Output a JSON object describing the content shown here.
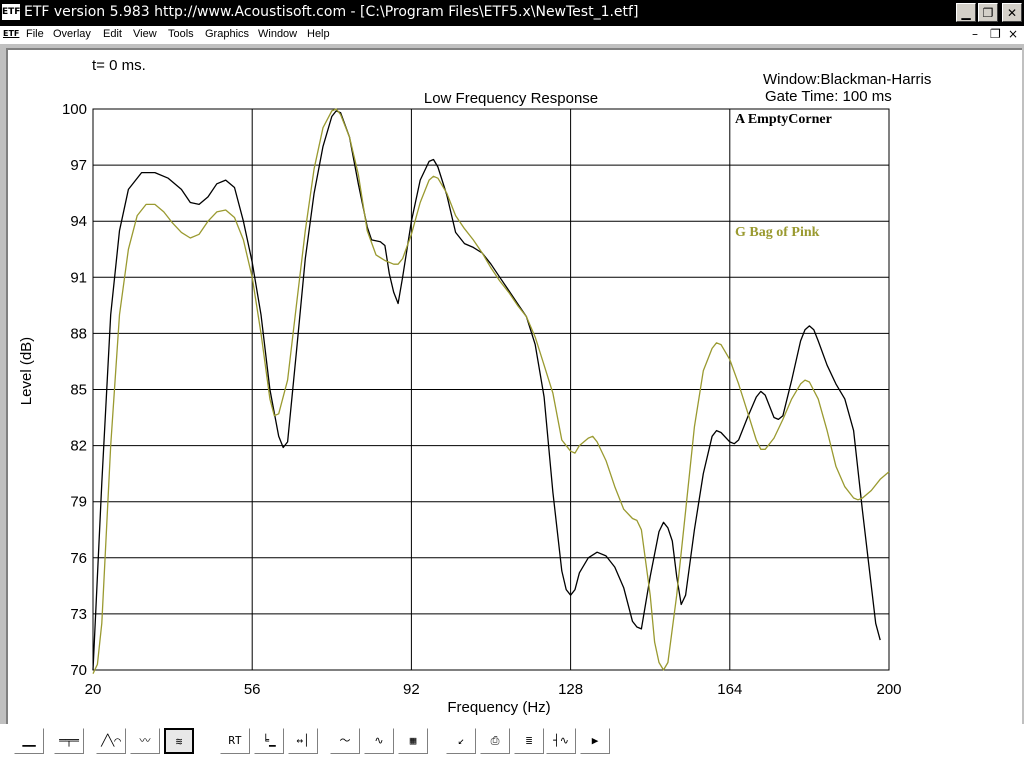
{
  "window": {
    "app_icon_label": "ETF",
    "title": "ETF version 5.983 http://www.Acoustisoft.com - [C:\\Program Files\\ETF5.x\\NewTest_1.etf]"
  },
  "menubar": {
    "doc_icon_label": "ETF",
    "items": [
      {
        "label": "File"
      },
      {
        "label": "Overlay"
      },
      {
        "label": "Edit"
      },
      {
        "label": "View"
      },
      {
        "label": "Tools"
      },
      {
        "label": "Graphics"
      },
      {
        "label": "Window"
      },
      {
        "label": "Help"
      }
    ]
  },
  "plot_header": {
    "time_label": "t= 0 ms.",
    "window_label": "Window:Blackman-Harris",
    "gate_label": "Gate Time: 100 ms"
  },
  "toolbar": {
    "rt_label": "RT"
  },
  "chart_data": {
    "type": "line",
    "title": "Low Frequency Response",
    "xlabel": "Frequency (Hz)",
    "ylabel": "Level (dB)",
    "xlim": [
      20,
      200
    ],
    "ylim": [
      70,
      100
    ],
    "x_ticks": [
      20,
      56,
      92,
      128,
      164,
      200
    ],
    "y_ticks": [
      70,
      73,
      76,
      79,
      82,
      85,
      88,
      91,
      94,
      97,
      100
    ],
    "grid": true,
    "legend_placement": "top-right, inside",
    "series": [
      {
        "name": "A EmptyCorner",
        "color": "#000000",
        "points": [
          [
            20,
            70
          ],
          [
            22,
            80
          ],
          [
            24,
            89
          ],
          [
            26,
            93.5
          ],
          [
            28,
            95.7
          ],
          [
            31,
            96.6
          ],
          [
            34,
            96.6
          ],
          [
            37,
            96.3
          ],
          [
            40,
            95.7
          ],
          [
            42,
            95
          ],
          [
            44,
            94.9
          ],
          [
            46,
            95.3
          ],
          [
            48,
            96
          ],
          [
            50,
            96.2
          ],
          [
            52,
            95.8
          ],
          [
            54,
            94
          ],
          [
            56,
            91.8
          ],
          [
            58,
            89
          ],
          [
            60,
            85
          ],
          [
            62,
            82.5
          ],
          [
            63,
            81.9
          ],
          [
            64,
            82.2
          ],
          [
            66,
            87
          ],
          [
            68,
            92
          ],
          [
            70,
            95.5
          ],
          [
            72,
            98
          ],
          [
            74,
            99.6
          ],
          [
            75,
            99.9
          ],
          [
            76,
            99.8
          ],
          [
            78,
            98.5
          ],
          [
            80,
            96
          ],
          [
            82,
            93.7
          ],
          [
            83,
            93
          ],
          [
            85,
            92.9
          ],
          [
            86,
            92.7
          ],
          [
            87,
            91.2
          ],
          [
            88,
            90.2
          ],
          [
            89,
            89.6
          ],
          [
            90,
            91
          ],
          [
            92,
            94
          ],
          [
            94,
            96.2
          ],
          [
            96,
            97.2
          ],
          [
            97,
            97.3
          ],
          [
            98,
            96.9
          ],
          [
            100,
            95.4
          ],
          [
            102,
            93.4
          ],
          [
            104,
            92.8
          ],
          [
            106,
            92.6
          ],
          [
            108,
            92.3
          ],
          [
            110,
            91.7
          ],
          [
            112,
            91
          ],
          [
            114,
            90.3
          ],
          [
            116,
            89.6
          ],
          [
            118,
            88.9
          ],
          [
            120,
            87.4
          ],
          [
            122,
            84.6
          ],
          [
            124,
            79.5
          ],
          [
            126,
            75.3
          ],
          [
            127,
            74.3
          ],
          [
            128,
            74
          ],
          [
            129,
            74.3
          ],
          [
            130,
            75.2
          ],
          [
            132,
            76
          ],
          [
            134,
            76.3
          ],
          [
            136,
            76.1
          ],
          [
            138,
            75.5
          ],
          [
            140,
            74.4
          ],
          [
            142,
            72.6
          ],
          [
            143,
            72.3
          ],
          [
            144,
            72.2
          ],
          [
            146,
            75
          ],
          [
            148,
            77.4
          ],
          [
            149,
            77.9
          ],
          [
            150,
            77.6
          ],
          [
            151,
            76.9
          ],
          [
            152,
            75
          ],
          [
            153,
            73.5
          ],
          [
            154,
            74
          ],
          [
            156,
            77.5
          ],
          [
            158,
            80.5
          ],
          [
            160,
            82.5
          ],
          [
            161,
            82.8
          ],
          [
            162,
            82.7
          ],
          [
            164,
            82.2
          ],
          [
            165,
            82.1
          ],
          [
            166,
            82.3
          ],
          [
            168,
            83.5
          ],
          [
            170,
            84.6
          ],
          [
            171,
            84.9
          ],
          [
            172,
            84.7
          ],
          [
            174,
            83.5
          ],
          [
            175,
            83.4
          ],
          [
            176,
            83.6
          ],
          [
            178,
            85.5
          ],
          [
            180,
            87.6
          ],
          [
            181,
            88.2
          ],
          [
            182,
            88.4
          ],
          [
            183,
            88.2
          ],
          [
            184,
            87.6
          ],
          [
            186,
            86.3
          ],
          [
            188,
            85.3
          ],
          [
            190,
            84.5
          ],
          [
            192,
            82.8
          ],
          [
            194,
            78.5
          ],
          [
            196,
            74.5
          ],
          [
            197,
            72.5
          ],
          [
            198,
            71.6
          ]
        ]
      },
      {
        "name": "G Bag of Pink",
        "color": "#9a9a30",
        "points": [
          [
            20,
            69.8
          ],
          [
            21,
            70.3
          ],
          [
            22,
            72.5
          ],
          [
            24,
            82
          ],
          [
            26,
            89
          ],
          [
            28,
            92.5
          ],
          [
            30,
            94.3
          ],
          [
            32,
            94.9
          ],
          [
            34,
            94.9
          ],
          [
            36,
            94.5
          ],
          [
            38,
            93.9
          ],
          [
            40,
            93.4
          ],
          [
            42,
            93.1
          ],
          [
            44,
            93.3
          ],
          [
            46,
            94
          ],
          [
            48,
            94.5
          ],
          [
            50,
            94.6
          ],
          [
            52,
            94.2
          ],
          [
            54,
            93
          ],
          [
            56,
            91
          ],
          [
            58,
            88
          ],
          [
            60,
            84.5
          ],
          [
            61,
            83.6
          ],
          [
            62,
            83.7
          ],
          [
            64,
            85.5
          ],
          [
            66,
            89.5
          ],
          [
            68,
            93.5
          ],
          [
            70,
            96.8
          ],
          [
            72,
            99
          ],
          [
            74,
            99.9
          ],
          [
            75,
            100
          ],
          [
            76,
            99.7
          ],
          [
            78,
            98.5
          ],
          [
            80,
            96.5
          ],
          [
            82,
            93.5
          ],
          [
            84,
            92.2
          ],
          [
            86,
            91.9
          ],
          [
            88,
            91.7
          ],
          [
            89,
            91.7
          ],
          [
            90,
            92
          ],
          [
            92,
            93.3
          ],
          [
            94,
            95
          ],
          [
            96,
            96.2
          ],
          [
            97,
            96.4
          ],
          [
            98,
            96.3
          ],
          [
            100,
            95.5
          ],
          [
            102,
            94.3
          ],
          [
            104,
            93.6
          ],
          [
            106,
            93
          ],
          [
            108,
            92.3
          ],
          [
            110,
            91.5
          ],
          [
            112,
            90.8
          ],
          [
            114,
            90.2
          ],
          [
            116,
            89.5
          ],
          [
            118,
            88.9
          ],
          [
            120,
            87.8
          ],
          [
            122,
            86.3
          ],
          [
            124,
            84.8
          ],
          [
            126,
            82.3
          ],
          [
            128,
            81.7
          ],
          [
            129,
            81.6
          ],
          [
            130,
            82
          ],
          [
            132,
            82.4
          ],
          [
            133,
            82.5
          ],
          [
            134,
            82.2
          ],
          [
            136,
            81.2
          ],
          [
            138,
            79.8
          ],
          [
            140,
            78.6
          ],
          [
            142,
            78.1
          ],
          [
            143,
            78
          ],
          [
            144,
            77.5
          ],
          [
            146,
            74
          ],
          [
            147,
            71.5
          ],
          [
            148,
            70.4
          ],
          [
            149,
            70
          ],
          [
            150,
            70.4
          ],
          [
            152,
            74
          ],
          [
            154,
            78.5
          ],
          [
            156,
            83
          ],
          [
            158,
            86
          ],
          [
            160,
            87.2
          ],
          [
            161,
            87.5
          ],
          [
            162,
            87.4
          ],
          [
            164,
            86.6
          ],
          [
            166,
            85.3
          ],
          [
            168,
            83.8
          ],
          [
            170,
            82.3
          ],
          [
            171,
            81.8
          ],
          [
            172,
            81.8
          ],
          [
            174,
            82.4
          ],
          [
            176,
            83.4
          ],
          [
            178,
            84.5
          ],
          [
            180,
            85.3
          ],
          [
            181,
            85.5
          ],
          [
            182,
            85.4
          ],
          [
            184,
            84.5
          ],
          [
            186,
            82.8
          ],
          [
            188,
            80.9
          ],
          [
            190,
            79.8
          ],
          [
            192,
            79.2
          ],
          [
            193,
            79.1
          ],
          [
            194,
            79.2
          ],
          [
            196,
            79.6
          ],
          [
            198,
            80.2
          ],
          [
            200,
            80.6
          ]
        ]
      }
    ]
  }
}
